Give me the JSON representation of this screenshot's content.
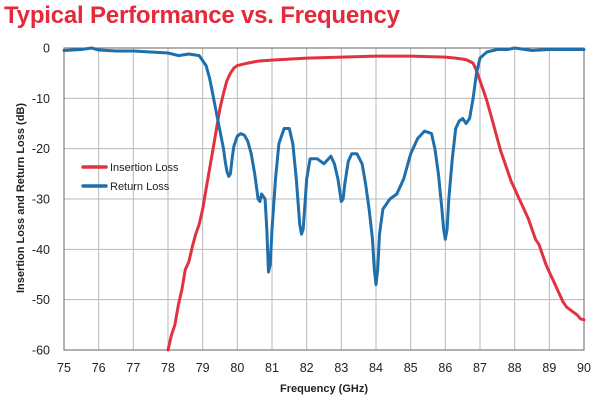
{
  "title": "Typical Performance vs. Frequency",
  "colors": {
    "title": "#e5283a",
    "insertion_loss": "#e23240",
    "return_loss": "#1f6fad",
    "grid": "#b8b8b8",
    "frame": "#666666"
  },
  "chart_data": {
    "type": "line",
    "title": "",
    "xlabel": "Frequency (GHz)",
    "ylabel": "Insertion Loss and Return Loss (dB)",
    "xlim": [
      75,
      90
    ],
    "ylim": [
      -60,
      0
    ],
    "grid": true,
    "legend_position": "left",
    "x_ticks": [
      "75",
      "76",
      "77",
      "78",
      "79",
      "80",
      "81",
      "82",
      "83",
      "84",
      "85",
      "86",
      "87",
      "88",
      "89",
      "90"
    ],
    "y_ticks": [
      "0",
      "-10",
      "-20",
      "-30",
      "-40",
      "-50",
      "-60"
    ],
    "series": [
      {
        "name": "Insertion Loss",
        "color": "#e23240",
        "x": [
          78.0,
          78.1,
          78.2,
          78.3,
          78.4,
          78.5,
          78.6,
          78.7,
          78.8,
          78.9,
          79.0,
          79.1,
          79.2,
          79.3,
          79.4,
          79.5,
          79.6,
          79.7,
          79.8,
          79.9,
          80.0,
          80.3,
          80.6,
          81.0,
          81.5,
          82.0,
          82.5,
          83.0,
          83.5,
          84.0,
          84.5,
          85.0,
          85.5,
          86.0,
          86.3,
          86.6,
          86.8,
          86.9,
          87.0,
          87.1,
          87.2,
          87.3,
          87.4,
          87.5,
          87.6,
          87.7,
          87.8,
          87.9,
          88.0,
          88.1,
          88.2,
          88.3,
          88.4,
          88.5,
          88.6,
          88.7,
          88.8,
          88.9,
          89.0,
          89.1,
          89.2,
          89.3,
          89.4,
          89.5,
          89.6,
          89.7,
          89.8,
          89.9,
          90.0
        ],
        "y": [
          -60.0,
          -57.0,
          -55.0,
          -51.0,
          -48.0,
          -44.0,
          -42.5,
          -39.5,
          -37.0,
          -35.0,
          -32.0,
          -28.0,
          -24.0,
          -20.0,
          -16.0,
          -12.0,
          -9.0,
          -6.5,
          -5.0,
          -4.0,
          -3.5,
          -3.0,
          -2.6,
          -2.4,
          -2.2,
          -2.0,
          -1.9,
          -1.8,
          -1.7,
          -1.6,
          -1.6,
          -1.6,
          -1.7,
          -1.8,
          -2.0,
          -2.3,
          -3.0,
          -4.5,
          -6.5,
          -8.5,
          -10.5,
          -13.0,
          -15.5,
          -18.0,
          -20.5,
          -22.5,
          -24.5,
          -26.5,
          -28.0,
          -29.5,
          -31.0,
          -32.5,
          -34.0,
          -36.0,
          -38.0,
          -39.0,
          -41.0,
          -43.0,
          -44.5,
          -46.0,
          -47.5,
          -49.0,
          -50.5,
          -51.5,
          -52.0,
          -52.5,
          -53.0,
          -53.8,
          -54.0
        ]
      },
      {
        "name": "Return Loss",
        "color": "#1f6fad",
        "x": [
          75.0,
          75.5,
          75.8,
          76.0,
          76.5,
          77.0,
          77.5,
          78.0,
          78.3,
          78.6,
          78.9,
          79.1,
          79.2,
          79.3,
          79.4,
          79.5,
          79.6,
          79.65,
          79.7,
          79.75,
          79.8,
          79.85,
          79.9,
          79.95,
          80.0,
          80.1,
          80.2,
          80.3,
          80.4,
          80.5,
          80.6,
          80.65,
          80.7,
          80.8,
          80.85,
          80.9,
          80.95,
          81.0,
          81.1,
          81.2,
          81.35,
          81.5,
          81.6,
          81.7,
          81.8,
          81.85,
          81.9,
          82.0,
          82.1,
          82.3,
          82.5,
          82.7,
          82.8,
          82.9,
          83.0,
          83.05,
          83.1,
          83.2,
          83.3,
          83.45,
          83.6,
          83.7,
          83.8,
          83.9,
          83.95,
          84.0,
          84.05,
          84.1,
          84.2,
          84.4,
          84.6,
          84.8,
          85.0,
          85.2,
          85.4,
          85.6,
          85.7,
          85.8,
          85.9,
          85.95,
          86.0,
          86.05,
          86.1,
          86.2,
          86.3,
          86.4,
          86.5,
          86.6,
          86.7,
          86.8,
          86.9,
          87.0,
          87.2,
          87.5,
          87.8,
          88.0,
          88.5,
          89.0,
          89.5,
          90.0
        ],
        "y": [
          -0.5,
          -0.3,
          0.0,
          -0.4,
          -0.6,
          -0.6,
          -0.8,
          -1.0,
          -1.5,
          -1.2,
          -1.5,
          -3.5,
          -6.0,
          -9.5,
          -13.0,
          -16.5,
          -20.0,
          -22.5,
          -24.5,
          -25.5,
          -25.0,
          -22.0,
          -19.5,
          -18.5,
          -17.5,
          -17.0,
          -17.3,
          -18.5,
          -21.0,
          -25.0,
          -30.0,
          -30.5,
          -29.0,
          -30.0,
          -36.0,
          -44.5,
          -43.0,
          -36.0,
          -26.0,
          -19.0,
          -16.0,
          -16.0,
          -19.0,
          -26.0,
          -35.0,
          -37.0,
          -36.0,
          -26.0,
          -22.0,
          -22.0,
          -23.0,
          -21.5,
          -23.0,
          -26.0,
          -30.5,
          -30.0,
          -27.0,
          -22.5,
          -21.0,
          -21.0,
          -23.0,
          -27.0,
          -32.0,
          -38.0,
          -44.0,
          -47.0,
          -44.0,
          -37.0,
          -32.0,
          -30.0,
          -29.0,
          -26.0,
          -21.0,
          -18.0,
          -16.5,
          -17.0,
          -20.0,
          -25.0,
          -32.0,
          -36.0,
          -38.0,
          -36.0,
          -30.0,
          -22.0,
          -16.0,
          -14.5,
          -14.0,
          -15.0,
          -14.0,
          -10.0,
          -5.0,
          -2.0,
          -0.8,
          -0.3,
          -0.3,
          0.0,
          -0.5,
          -0.3,
          -0.3,
          -0.3
        ]
      }
    ]
  }
}
